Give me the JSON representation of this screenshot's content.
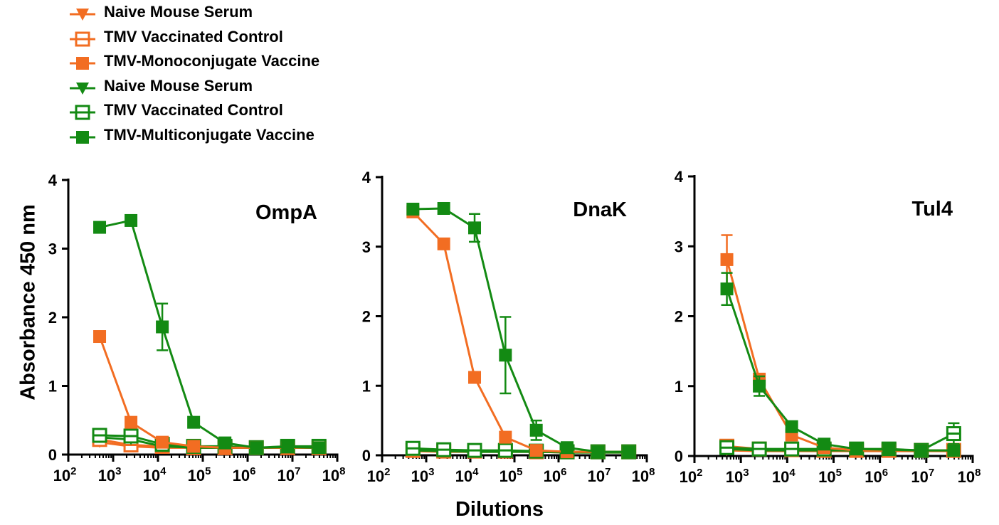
{
  "colors": {
    "orange": "#f26d22",
    "green": "#138a13"
  },
  "legend": [
    {
      "label": "Naive Mouse Serum",
      "color": "#f26d22",
      "marker": "triangle-down"
    },
    {
      "label": "TMV Vaccinated Control",
      "color": "#f26d22",
      "marker": "square-open"
    },
    {
      "label": "TMV-Monoconjugate Vaccine",
      "color": "#f26d22",
      "marker": "square-filled"
    },
    {
      "label": "Naive Mouse Serum",
      "color": "#138a13",
      "marker": "triangle-down"
    },
    {
      "label": "TMV Vaccinated Control",
      "color": "#138a13",
      "marker": "square-open"
    },
    {
      "label": "TMV-Multiconjugate Vaccine",
      "color": "#138a13",
      "marker": "square-filled"
    }
  ],
  "axes": {
    "ylabel": "Absorbance 450 nm",
    "xlabel": "Dilutions"
  },
  "chart_data": [
    {
      "type": "line",
      "title": "OmpA",
      "xscale": "log",
      "xlim": [
        100,
        100000000
      ],
      "ylim": [
        0,
        4
      ],
      "yticks": [
        0,
        1,
        2,
        3,
        4
      ],
      "xtick_exponents": [
        2,
        3,
        4,
        5,
        6,
        7,
        8
      ],
      "x": [
        500,
        2500,
        12500,
        62500,
        312500,
        1562500,
        7812500,
        39062500
      ],
      "series": [
        {
          "name": "Naive Mouse Serum",
          "color": "#f26d22",
          "marker": "triangle-down",
          "values": [
            0.18,
            0.12,
            0.1,
            0.1,
            0.1,
            0.1,
            0.1,
            0.1
          ]
        },
        {
          "name": "TMV Vaccinated Control",
          "color": "#f26d22",
          "marker": "square-open",
          "values": [
            0.22,
            0.14,
            0.12,
            0.1,
            0.1,
            0.1,
            0.1,
            0.1
          ]
        },
        {
          "name": "TMV-Monoconjugate Vaccine",
          "color": "#f26d22",
          "marker": "square-filled",
          "values": [
            1.72,
            0.47,
            0.18,
            0.12,
            0.1,
            0.1,
            0.1,
            0.1
          ]
        },
        {
          "name": "Naive Mouse Serum",
          "color": "#138a13",
          "marker": "triangle-down",
          "values": [
            0.25,
            0.22,
            0.12,
            0.1,
            0.1,
            0.1,
            0.1,
            0.1
          ]
        },
        {
          "name": "TMV Vaccinated Control",
          "color": "#138a13",
          "marker": "square-open",
          "values": [
            0.28,
            0.27,
            0.15,
            0.12,
            0.12,
            0.1,
            0.12,
            0.12
          ]
        },
        {
          "name": "TMV-Multiconjugate Vaccine",
          "color": "#138a13",
          "marker": "square-filled",
          "values": [
            3.31,
            3.41,
            1.86,
            0.47,
            0.17,
            0.1,
            0.11,
            0.1
          ],
          "errors": [
            0,
            0,
            0.34,
            0,
            0,
            0,
            0,
            0
          ]
        }
      ]
    },
    {
      "type": "line",
      "title": "DnaK",
      "xscale": "log",
      "xlim": [
        100,
        100000000
      ],
      "ylim": [
        0,
        4
      ],
      "yticks": [
        0,
        1,
        2,
        3,
        4
      ],
      "xtick_exponents": [
        2,
        3,
        4,
        5,
        6,
        7,
        8
      ],
      "x": [
        500,
        2500,
        12500,
        62500,
        312500,
        1562500,
        7812500,
        39062500
      ],
      "series": [
        {
          "name": "Naive Mouse Serum",
          "color": "#f26d22",
          "marker": "triangle-down",
          "values": [
            0.06,
            0.05,
            0.05,
            0.05,
            0.05,
            0.04,
            0.04,
            0.04
          ]
        },
        {
          "name": "TMV Vaccinated Control",
          "color": "#f26d22",
          "marker": "square-open",
          "values": [
            0.07,
            0.06,
            0.06,
            0.06,
            0.05,
            0.05,
            0.05,
            0.05
          ]
        },
        {
          "name": "TMV-Monoconjugate Vaccine",
          "color": "#f26d22",
          "marker": "square-filled",
          "values": [
            3.5,
            3.04,
            1.12,
            0.26,
            0.07,
            0.05,
            0.05,
            0.05
          ]
        },
        {
          "name": "Naive Mouse Serum",
          "color": "#138a13",
          "marker": "triangle-down",
          "values": [
            0.07,
            0.06,
            0.05,
            0.05,
            0.05,
            0.04,
            0.04,
            0.04
          ]
        },
        {
          "name": "TMV Vaccinated Control",
          "color": "#138a13",
          "marker": "square-open",
          "values": [
            0.1,
            0.08,
            0.07,
            0.07,
            0.06,
            0.05,
            0.05,
            0.05
          ]
        },
        {
          "name": "TMV-Multiconjugate Vaccine",
          "color": "#138a13",
          "marker": "square-filled",
          "values": [
            3.54,
            3.55,
            3.27,
            1.44,
            0.36,
            0.11,
            0.05,
            0.05
          ],
          "errors": [
            0,
            0,
            0.2,
            0.55,
            0.14,
            0,
            0,
            0
          ]
        }
      ]
    },
    {
      "type": "line",
      "title": "Tul4",
      "xscale": "log",
      "xlim": [
        100,
        100000000
      ],
      "ylim": [
        0,
        4
      ],
      "yticks": [
        0,
        1,
        2,
        3,
        4
      ],
      "xtick_exponents": [
        2,
        3,
        4,
        5,
        6,
        7,
        8
      ],
      "x": [
        500,
        2500,
        12500,
        62500,
        312500,
        1562500,
        7812500,
        39062500
      ],
      "series": [
        {
          "name": "Naive Mouse Serum",
          "color": "#f26d22",
          "marker": "triangle-down",
          "values": [
            0.08,
            0.07,
            0.07,
            0.07,
            0.07,
            0.07,
            0.07,
            0.07
          ]
        },
        {
          "name": "TMV Vaccinated Control",
          "color": "#f26d22",
          "marker": "square-open",
          "values": [
            0.14,
            0.1,
            0.09,
            0.08,
            0.08,
            0.08,
            0.08,
            0.08
          ]
        },
        {
          "name": "TMV-Monoconjugate Vaccine",
          "color": "#f26d22",
          "marker": "square-filled",
          "values": [
            2.81,
            1.1,
            0.3,
            0.12,
            0.08,
            0.08,
            0.08,
            0.08
          ],
          "errors": [
            0.35,
            0.06,
            0.05,
            0,
            0,
            0,
            0,
            0
          ]
        },
        {
          "name": "Naive Mouse Serum",
          "color": "#138a13",
          "marker": "triangle-down",
          "values": [
            0.1,
            0.08,
            0.08,
            0.08,
            0.08,
            0.08,
            0.08,
            0.08
          ]
        },
        {
          "name": "TMV Vaccinated Control",
          "color": "#138a13",
          "marker": "square-open",
          "values": [
            0.12,
            0.1,
            0.1,
            0.1,
            0.1,
            0.1,
            0.08,
            0.32
          ],
          "errors": [
            0,
            0,
            0,
            0,
            0,
            0,
            0,
            0.15
          ]
        },
        {
          "name": "TMV-Multiconjugate Vaccine",
          "color": "#138a13",
          "marker": "square-filled",
          "values": [
            2.39,
            1.0,
            0.42,
            0.17,
            0.1,
            0.09,
            0.08,
            0.08
          ],
          "errors": [
            0.23,
            0.14,
            0.04,
            0,
            0,
            0,
            0,
            0
          ]
        }
      ]
    }
  ]
}
